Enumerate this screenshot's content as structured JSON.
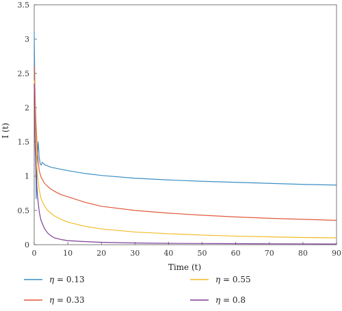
{
  "chart_data": {
    "type": "line",
    "xlabel": "Time (t)",
    "ylabel": "I (t)",
    "xlim": [
      0,
      90
    ],
    "ylim": [
      0,
      3.5
    ],
    "xticks": [
      0,
      10,
      20,
      30,
      40,
      50,
      60,
      70,
      80,
      90
    ],
    "yticks": [
      0,
      0.5,
      1,
      1.5,
      2,
      2.5,
      3,
      3.5
    ],
    "grid": false,
    "legend_position": "bottom",
    "series": [
      {
        "name": "η = 0.13",
        "symbol": "η",
        "value_label": " = 0.13",
        "color": "#3a8ec4",
        "x": [
          0,
          0.3,
          0.6,
          0.9,
          1.2,
          1.5,
          1.8,
          2.1,
          2.4,
          2.7,
          3.0,
          3.5,
          4,
          5,
          6,
          8,
          10,
          15,
          20,
          30,
          40,
          50,
          60,
          70,
          80,
          90
        ],
        "y": [
          3.1,
          1.9,
          0.67,
          1.25,
          1.5,
          1.27,
          1.18,
          1.16,
          1.2,
          1.19,
          1.17,
          1.16,
          1.15,
          1.13,
          1.12,
          1.1,
          1.08,
          1.04,
          1.01,
          0.97,
          0.945,
          0.925,
          0.91,
          0.895,
          0.88,
          0.87
        ]
      },
      {
        "name": "η = 0.33",
        "symbol": "η",
        "value_label": " = 0.33",
        "color": "#e0593b",
        "x": [
          0,
          0.5,
          1,
          1.5,
          2,
          3,
          4,
          5,
          6,
          8,
          10,
          15,
          20,
          30,
          40,
          50,
          60,
          70,
          80,
          90
        ],
        "y": [
          2.6,
          1.8,
          1.32,
          1.08,
          0.99,
          0.9,
          0.85,
          0.81,
          0.78,
          0.73,
          0.7,
          0.62,
          0.56,
          0.5,
          0.46,
          0.43,
          0.405,
          0.385,
          0.37,
          0.355
        ]
      },
      {
        "name": "η = 0.55",
        "symbol": "η",
        "value_label": " = 0.55",
        "color": "#f1bc26",
        "x": [
          0,
          0.5,
          1,
          1.5,
          2,
          3,
          4,
          5,
          6,
          8,
          10,
          15,
          20,
          30,
          40,
          50,
          60,
          70,
          80,
          90
        ],
        "y": [
          2.4,
          1.5,
          1.0,
          0.8,
          0.68,
          0.57,
          0.5,
          0.46,
          0.42,
          0.37,
          0.33,
          0.27,
          0.23,
          0.185,
          0.16,
          0.14,
          0.125,
          0.115,
          0.105,
          0.1
        ]
      },
      {
        "name": "η = 0.8",
        "symbol": "η",
        "value_label": " = 0.8",
        "color": "#7d3c98",
        "x": [
          0,
          0.3,
          0.6,
          1,
          1.5,
          2,
          3,
          4,
          5,
          6,
          8,
          10,
          15,
          20,
          30,
          40,
          50,
          60,
          70,
          80,
          90
        ],
        "y": [
          2.35,
          1.4,
          1.0,
          0.7,
          0.48,
          0.36,
          0.24,
          0.17,
          0.13,
          0.1,
          0.075,
          0.06,
          0.045,
          0.035,
          0.025,
          0.02,
          0.017,
          0.015,
          0.013,
          0.012,
          0.01
        ]
      }
    ]
  }
}
